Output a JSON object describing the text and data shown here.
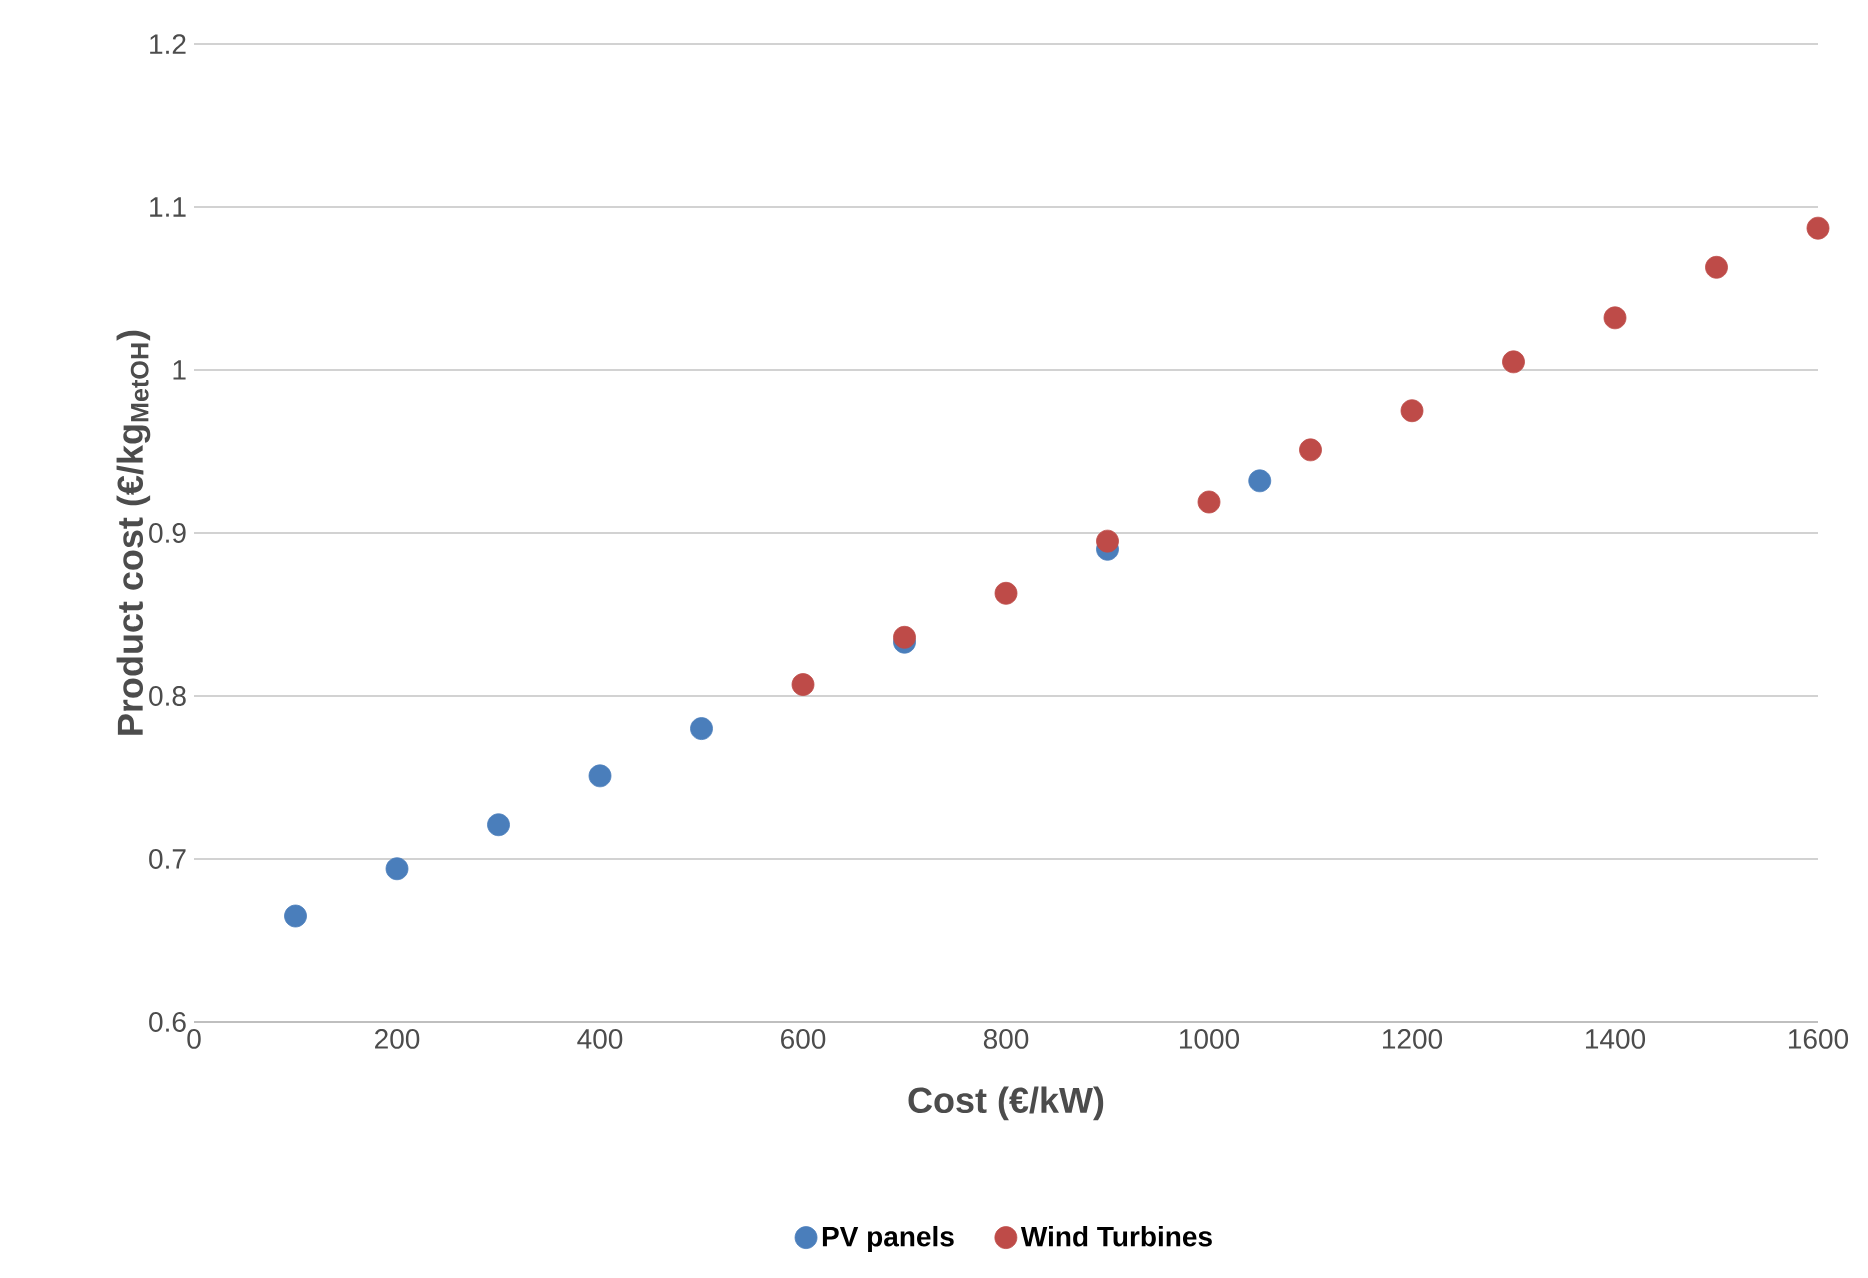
{
  "chart_data": {
    "type": "scatter",
    "xlabel": "Cost (€/kW)",
    "ylabel": "Product cost (€/kg$_{MetOH}$)",
    "series": [
      {
        "name": "PV panels",
        "color": "#4a7ebb",
        "x": [
          100,
          200,
          300,
          400,
          500,
          700,
          900,
          1050
        ],
        "values": [
          0.665,
          0.694,
          0.721,
          0.751,
          0.78,
          0.833,
          0.89,
          0.932
        ]
      },
      {
        "name": "Wind Turbines",
        "color": "#be4b48",
        "x": [
          600,
          700,
          800,
          900,
          1000,
          1100,
          1200,
          1300,
          1400,
          1500,
          1600
        ],
        "values": [
          0.807,
          0.836,
          0.863,
          0.895,
          0.919,
          0.951,
          0.975,
          1.005,
          1.032,
          1.063,
          1.087
        ]
      }
    ],
    "xlim": [
      0,
      1600
    ],
    "xticks": [
      0,
      200,
      400,
      600,
      800,
      1000,
      1200,
      1400,
      1600
    ],
    "ylim": [
      0.6,
      1.2
    ],
    "yticks": [
      0.6,
      0.7,
      0.8,
      0.9,
      1,
      1.1,
      1.2
    ],
    "grid": "y",
    "legend": "bottom",
    "marker": "circle"
  }
}
